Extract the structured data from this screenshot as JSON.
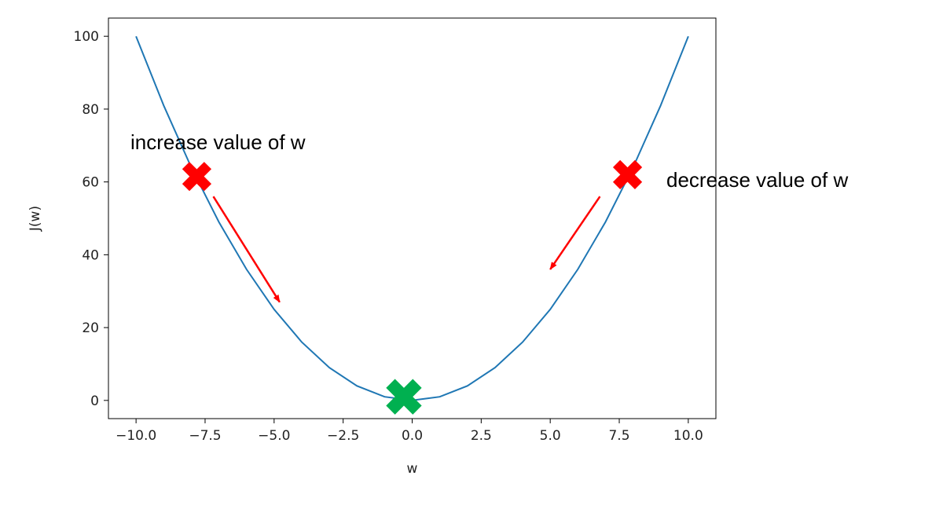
{
  "chart_data": {
    "type": "line",
    "title": "",
    "xlabel": "w",
    "ylabel": "J(w)",
    "xlim": [
      -11,
      11
    ],
    "ylim": [
      -5,
      105
    ],
    "xticks": [
      -10,
      -7.5,
      -5,
      -2.5,
      0,
      2.5,
      5,
      7.5,
      10
    ],
    "xtick_labels": [
      "−10.0",
      "−7.5",
      "−5.0",
      "−2.5",
      "0.0",
      "2.5",
      "5.0",
      "7.5",
      "10.0"
    ],
    "yticks": [
      0,
      20,
      40,
      60,
      80,
      100
    ],
    "ytick_labels": [
      "0",
      "20",
      "40",
      "60",
      "80",
      "100"
    ],
    "grid": false,
    "series": [
      {
        "color": "#1f77b4",
        "x": [
          -10,
          -9,
          -8,
          -7,
          -6,
          -5,
          -4,
          -3,
          -2,
          -1,
          0,
          1,
          2,
          3,
          4,
          5,
          6,
          7,
          8,
          9,
          10
        ],
        "y": [
          100,
          81,
          64,
          49,
          36,
          25,
          16,
          9,
          4,
          1,
          0,
          1,
          4,
          9,
          16,
          25,
          36,
          49,
          64,
          81,
          100
        ]
      }
    ],
    "markers": [
      {
        "name": "left-cross",
        "x": -7.8,
        "y": 61.5,
        "color": "#ff0000",
        "size": "small"
      },
      {
        "name": "right-cross",
        "x": 7.8,
        "y": 62,
        "color": "#ff0000",
        "size": "small"
      },
      {
        "name": "minimum-cross",
        "x": -0.3,
        "y": 1,
        "color": "#00b050",
        "size": "large"
      }
    ],
    "arrows": [
      {
        "name": "left-arrow",
        "from": [
          -7.2,
          56
        ],
        "to": [
          -4.8,
          27
        ],
        "color": "#ff0000"
      },
      {
        "name": "right-arrow",
        "from": [
          6.8,
          56
        ],
        "to": [
          5.0,
          36
        ],
        "color": "#ff0000"
      }
    ],
    "annotations": [
      {
        "name": "increase-annotation",
        "text": "increase value of w"
      },
      {
        "name": "decrease-annotation",
        "text": "decrease value of w"
      }
    ]
  }
}
